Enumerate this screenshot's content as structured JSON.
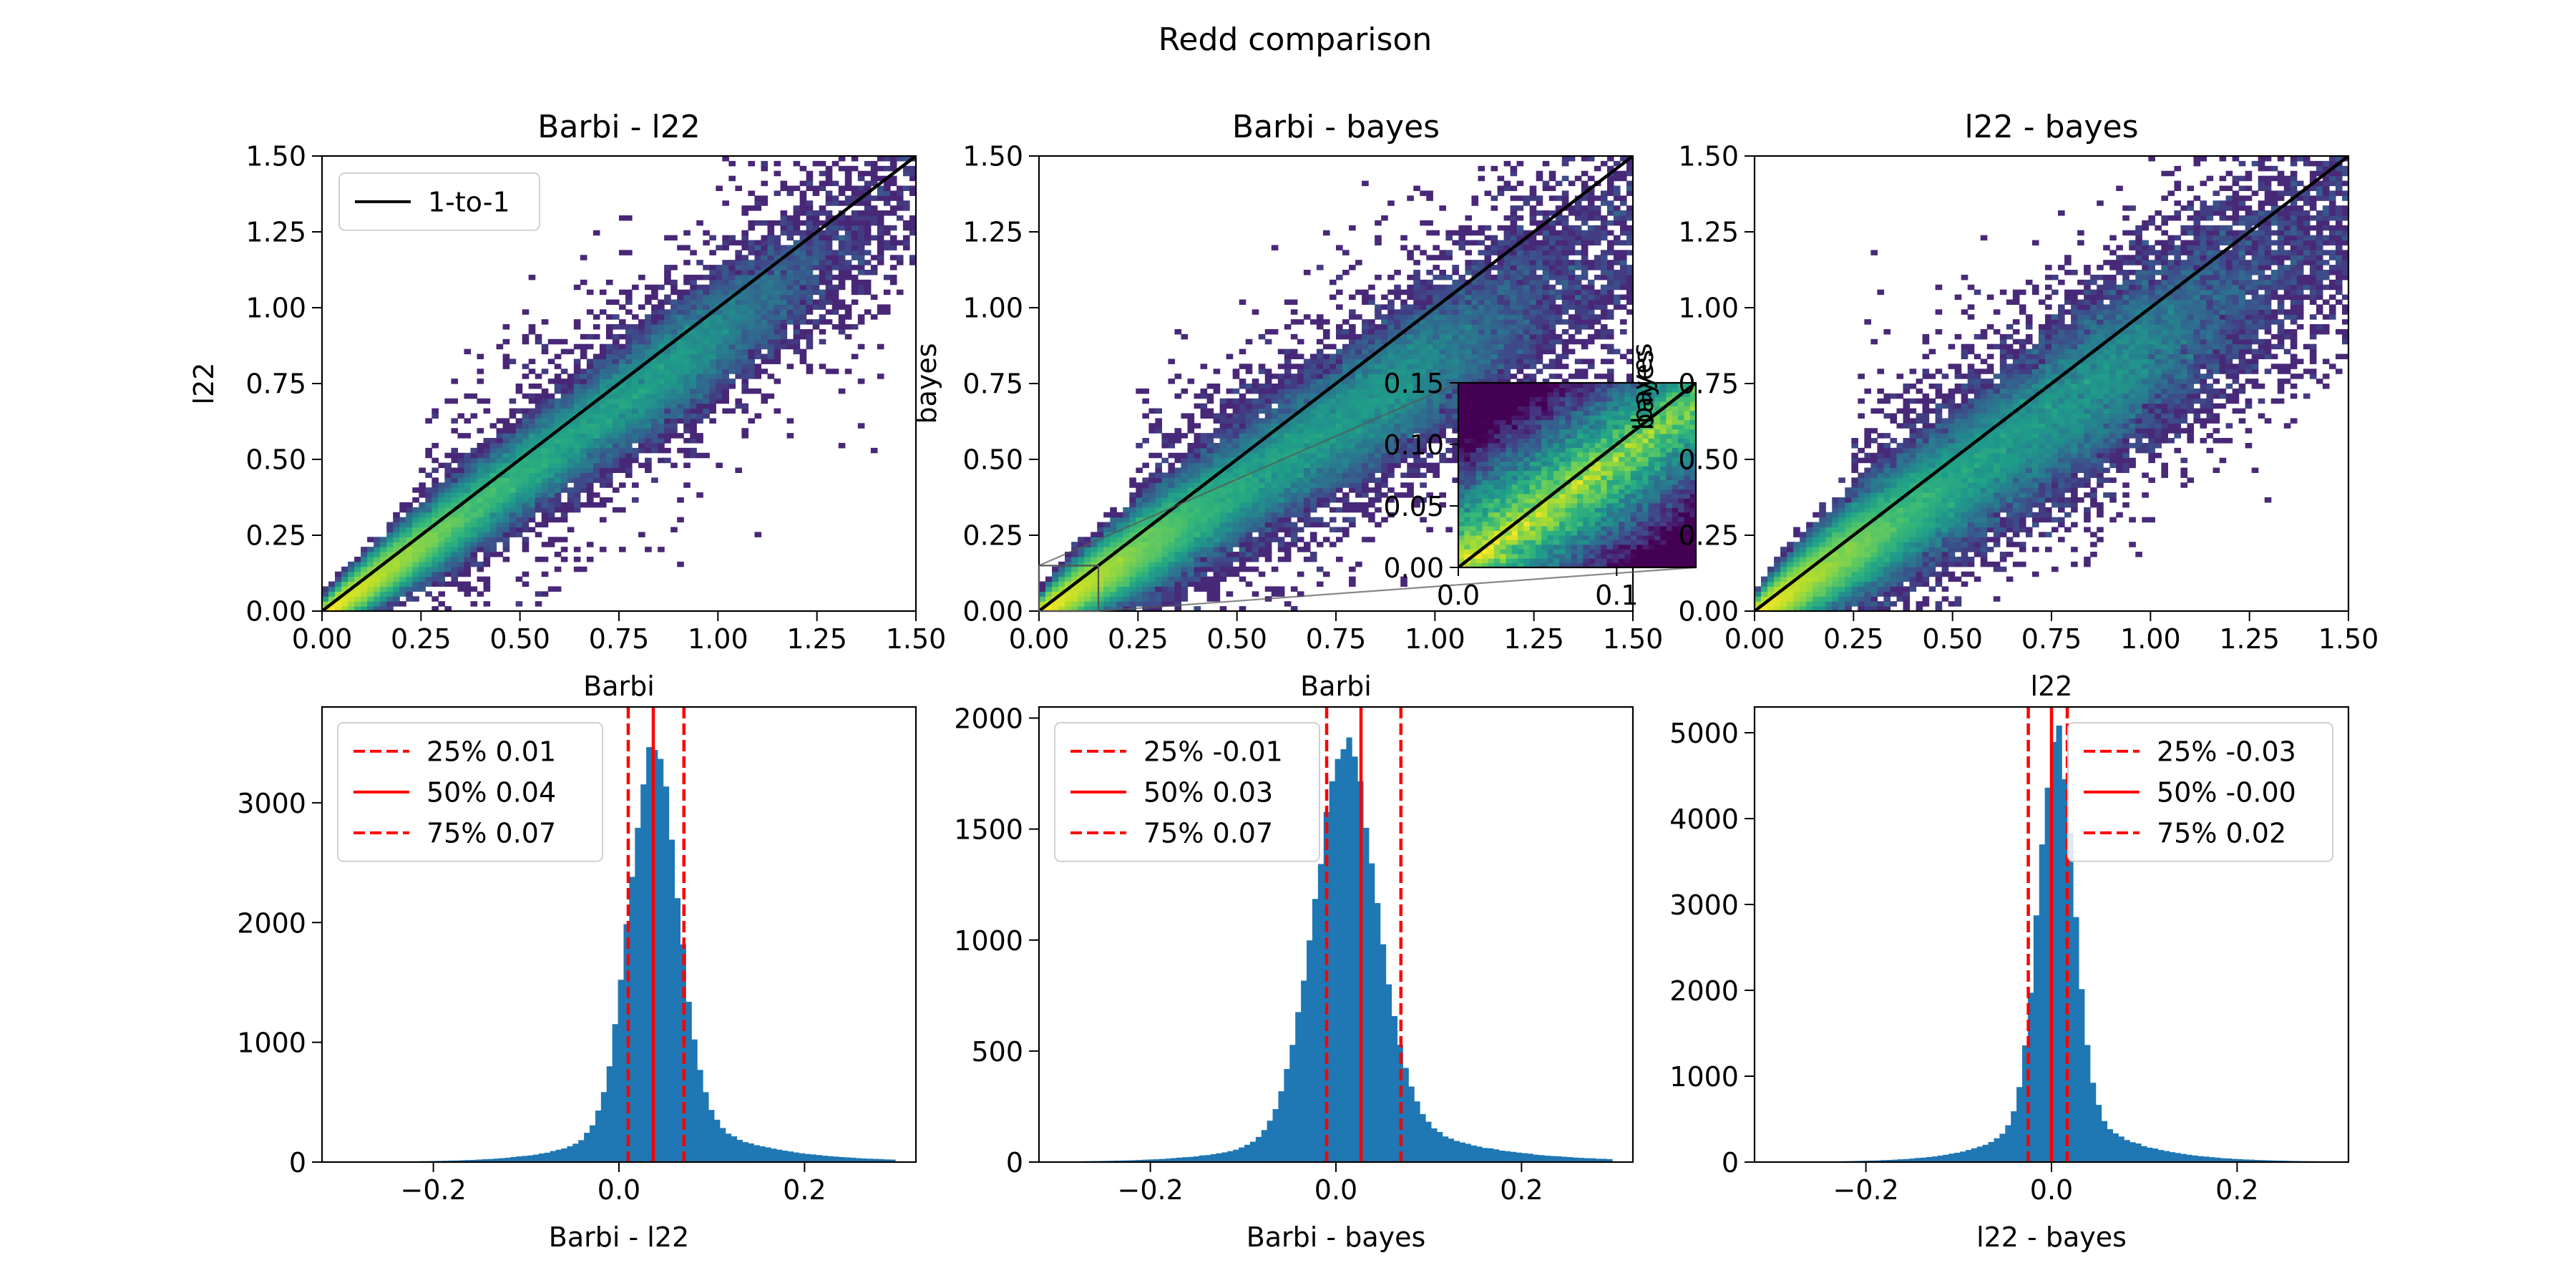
{
  "figure": {
    "suptitle": "Redd comparison"
  },
  "chart_data": [
    {
      "type": "heatmap",
      "title": "Barbi - l22",
      "xlabel": "Barbi",
      "ylabel": "l22",
      "xlim": [
        0,
        1.5
      ],
      "ylim": [
        0,
        1.5
      ],
      "xticks": [
        "0.00",
        "0.25",
        "0.50",
        "0.75",
        "1.00",
        "1.25",
        "1.50"
      ],
      "yticks": [
        "0.00",
        "0.25",
        "0.50",
        "0.75",
        "1.00",
        "1.25",
        "1.50"
      ],
      "grid": false,
      "colormap": "viridis",
      "reference_line": {
        "name": "1-to-1",
        "x": [
          0,
          1.5
        ],
        "y": [
          0,
          1.5
        ],
        "color": "#000000"
      },
      "legend": {
        "placement": "upper-left",
        "entries": [
          "1-to-1"
        ]
      },
      "density": {
        "spread_a": 0.12,
        "spread_b": 0.08,
        "slope": 0.93,
        "intercept": -0.015,
        "sparse_fraction": 0.03
      }
    },
    {
      "type": "heatmap",
      "title": "Barbi - bayes",
      "xlabel": "Barbi",
      "ylabel": "bayes",
      "xlim": [
        0,
        1.5
      ],
      "ylim": [
        0,
        1.5
      ],
      "xticks": [
        "0.00",
        "0.25",
        "0.50",
        "0.75",
        "1.00",
        "1.25",
        "1.50"
      ],
      "yticks": [
        "0.00",
        "0.25",
        "0.50",
        "0.75",
        "1.00",
        "1.25",
        "1.50"
      ],
      "grid": false,
      "colormap": "viridis",
      "reference_line": {
        "name": "1-to-1",
        "x": [
          0,
          1.5
        ],
        "y": [
          0,
          1.5
        ],
        "color": "#000000"
      },
      "density": {
        "spread_a": 0.14,
        "spread_b": 0.14,
        "slope": 0.83,
        "intercept": -0.01,
        "sparse_fraction": 0.06
      },
      "inset": {
        "xlim": [
          0,
          0.15
        ],
        "ylim": [
          0,
          0.15
        ],
        "ylabel": "bayes",
        "xticks": [
          "0.0",
          "0.1"
        ],
        "yticks": [
          "0.00",
          "0.05",
          "0.10",
          "0.15"
        ],
        "zoom_region": {
          "x": [
            0,
            0.15
          ],
          "y": [
            0,
            0.15
          ]
        }
      }
    },
    {
      "type": "heatmap",
      "title": "l22 - bayes",
      "xlabel": "l22",
      "ylabel": "bayes",
      "xlim": [
        0,
        1.5
      ],
      "ylim": [
        0,
        1.5
      ],
      "xticks": [
        "0.00",
        "0.25",
        "0.50",
        "0.75",
        "1.00",
        "1.25",
        "1.50"
      ],
      "yticks": [
        "0.00",
        "0.25",
        "0.50",
        "0.75",
        "1.00",
        "1.25",
        "1.50"
      ],
      "grid": false,
      "colormap": "viridis",
      "reference_line": {
        "name": "1-to-1",
        "x": [
          0,
          1.5
        ],
        "y": [
          0,
          1.5
        ],
        "color": "#000000"
      },
      "density": {
        "spread_a": 0.16,
        "spread_b": 0.16,
        "slope": 0.88,
        "intercept": -0.015,
        "sparse_fraction": 0.07
      }
    },
    {
      "type": "bar",
      "title": "",
      "xlabel": "Barbi - l22",
      "ylabel": "",
      "xlim": [
        -0.32,
        0.32
      ],
      "ylim": [
        0,
        3800
      ],
      "xticks": [
        "−0.2",
        "0.0",
        "0.2"
      ],
      "yticks": [
        "0",
        "1000",
        "2000",
        "3000"
      ],
      "bin_width": 0.0061,
      "bin_range": [
        -0.3,
        0.3
      ],
      "color": "#1f77b4",
      "peak": {
        "x": 0.037,
        "count": 3530
      },
      "shape": {
        "core_width": 0.026,
        "core_weight": 0.82,
        "tail_left": 0.055,
        "tail_right": 0.075
      },
      "quantile_lines": [
        {
          "label": "25% 0.01",
          "value": 0.01,
          "style": "dashed",
          "color": "#ff0000"
        },
        {
          "label": "50% 0.04",
          "value": 0.037,
          "style": "solid",
          "color": "#ff0000"
        },
        {
          "label": "75% 0.07",
          "value": 0.07,
          "style": "dashed",
          "color": "#ff0000"
        }
      ],
      "legend": {
        "placement": "upper-left"
      }
    },
    {
      "type": "bar",
      "title": "",
      "xlabel": "Barbi - bayes",
      "ylabel": "",
      "xlim": [
        -0.32,
        0.32
      ],
      "ylim": [
        0,
        2050
      ],
      "xticks": [
        "−0.2",
        "0.0",
        "0.2"
      ],
      "yticks": [
        "0",
        "500",
        "1000",
        "1500",
        "2000"
      ],
      "bin_width": 0.0061,
      "bin_range": [
        -0.3,
        0.3
      ],
      "color": "#1f77b4",
      "peak": {
        "x": 0.01,
        "count": 1910
      },
      "shape": {
        "core_width": 0.034,
        "core_weight": 0.8,
        "tail_left": 0.06,
        "tail_right": 0.085
      },
      "quantile_lines": [
        {
          "label": "25% -0.01",
          "value": -0.01,
          "style": "dashed",
          "color": "#ff0000"
        },
        {
          "label": "50% 0.03",
          "value": 0.027,
          "style": "solid",
          "color": "#ff0000"
        },
        {
          "label": "75% 0.07",
          "value": 0.07,
          "style": "dashed",
          "color": "#ff0000"
        }
      ],
      "legend": {
        "placement": "upper-left"
      }
    },
    {
      "type": "bar",
      "title": "",
      "xlabel": "l22 - bayes",
      "ylabel": "",
      "xlim": [
        -0.32,
        0.32
      ],
      "ylim": [
        0,
        5300
      ],
      "xticks": [
        "−0.2",
        "0.0",
        "0.2"
      ],
      "yticks": [
        "0",
        "1000",
        "2000",
        "3000",
        "4000",
        "5000"
      ],
      "bin_width": 0.0061,
      "bin_range": [
        -0.3,
        0.3
      ],
      "color": "#1f77b4",
      "peak": {
        "x": 0.005,
        "count": 5100
      },
      "shape": {
        "core_width": 0.019,
        "core_weight": 0.82,
        "tail_left": 0.05,
        "tail_right": 0.06
      },
      "quantile_lines": [
        {
          "label": "25% -0.03",
          "value": -0.025,
          "style": "dashed",
          "color": "#ff0000"
        },
        {
          "label": "50% -0.00",
          "value": 0.0,
          "style": "solid",
          "color": "#ff0000"
        },
        {
          "label": "75% 0.02",
          "value": 0.017,
          "style": "dashed",
          "color": "#ff0000"
        }
      ],
      "legend": {
        "placement": "upper-right"
      }
    }
  ]
}
